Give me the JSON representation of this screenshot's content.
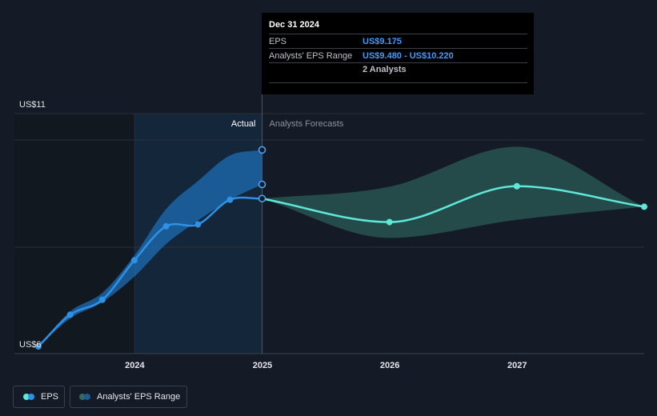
{
  "chart_data": {
    "type": "line",
    "y_axis_labels": {
      "top": "US$11",
      "bottom": "US$6"
    },
    "ylim": [
      6,
      11
    ],
    "x_ticks": [
      {
        "label": "2024",
        "x": "2024-01-01"
      },
      {
        "label": "2025",
        "x": "2025-01-01"
      },
      {
        "label": "2026",
        "x": "2026-01-01"
      },
      {
        "label": "2027",
        "x": "2027-01-01"
      }
    ],
    "x_range": [
      "2023-03-31",
      "2027-12-31"
    ],
    "region_labels": {
      "actual": "Actual",
      "forecast": "Analysts Forecasts"
    },
    "series": [
      {
        "name": "EPS",
        "color": "#2e91e5",
        "points": [
          {
            "x": "2023-03-31",
            "y": 6.0
          },
          {
            "x": "2023-06-30",
            "y": 6.68
          },
          {
            "x": "2023-09-30",
            "y": 7.0
          },
          {
            "x": "2023-12-31",
            "y": 7.85
          },
          {
            "x": "2024-03-31",
            "y": 8.58
          },
          {
            "x": "2024-06-30",
            "y": 8.62
          },
          {
            "x": "2024-09-30",
            "y": 9.15
          },
          {
            "x": "2024-12-31",
            "y": 9.175
          }
        ]
      },
      {
        "name": "EPS forecast",
        "color": "#5ee8d8",
        "points": [
          {
            "x": "2024-12-31",
            "y": 9.175
          },
          {
            "x": "2025-12-31",
            "y": 8.67
          },
          {
            "x": "2026-12-31",
            "y": 9.44
          },
          {
            "x": "2027-12-31",
            "y": 9.0
          }
        ]
      }
    ],
    "past_range": {
      "name": "Analysts' EPS Range",
      "points": [
        {
          "x": "2023-03-31",
          "low": 6.0,
          "high": 6.0
        },
        {
          "x": "2023-06-30",
          "low": 6.6,
          "high": 6.75
        },
        {
          "x": "2023-09-30",
          "low": 6.95,
          "high": 7.15
        },
        {
          "x": "2023-12-31",
          "low": 7.5,
          "high": 7.95
        },
        {
          "x": "2024-03-31",
          "low": 8.2,
          "high": 8.95
        },
        {
          "x": "2024-06-30",
          "low": 8.7,
          "high": 9.55
        },
        {
          "x": "2024-09-30",
          "low": 9.15,
          "high": 10.1
        },
        {
          "x": "2024-12-31",
          "low": 9.48,
          "high": 10.22
        }
      ]
    },
    "forecast_range": {
      "name": "Analysts' EPS Range",
      "points": [
        {
          "x": "2024-12-31",
          "low": 9.175,
          "high": 9.175
        },
        {
          "x": "2025-12-31",
          "low": 8.33,
          "high": 9.43
        },
        {
          "x": "2026-12-31",
          "low": 8.72,
          "high": 10.29
        },
        {
          "x": "2027-12-31",
          "low": 9.0,
          "high": 9.0
        }
      ]
    },
    "highlight_points": [
      {
        "x": "2024-12-31",
        "y": 9.175
      },
      {
        "x": "2024-12-31",
        "y": 9.48
      },
      {
        "x": "2024-12-31",
        "y": 10.22
      }
    ],
    "colors": {
      "eps": "#2e91e5",
      "forecast": "#5ee8d8",
      "past_band": "#1e6cb4",
      "forecast_band": "#2f6b63"
    }
  },
  "tooltip": {
    "date": "Dec 31 2024",
    "eps_label": "EPS",
    "eps_value": "US$9.175",
    "range_label": "Analysts' EPS Range",
    "range_value": "US$9.480 - US$10.220",
    "analysts": "2 Analysts"
  },
  "legend": {
    "eps_label": "EPS",
    "range_label": "Analysts' EPS Range"
  }
}
